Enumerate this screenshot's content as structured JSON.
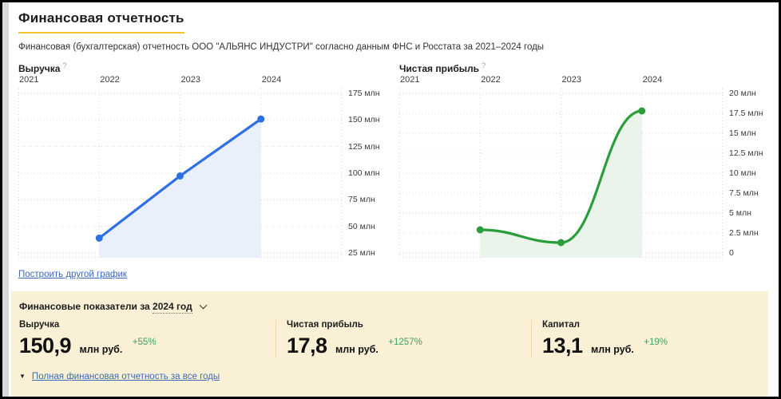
{
  "page": {
    "title": "Финансовая отчетность",
    "subtitle": "Финансовая (бухгалтерская) отчетность ООО \"АЛЬЯНС ИНДУСТРИ\" согласно данным ФНС и Росстата за 2021–2024 годы",
    "build_other_chart_link": "Построить другой график"
  },
  "colors": {
    "title_underline": "#f2c22c",
    "panel_background": "#faf0d6",
    "panel_divider": "#ecd9a4",
    "link_blue": "#3c6ab3",
    "positive_green": "#3da35c",
    "revenue_line": "#2f6fe5",
    "revenue_fill": "#e9effb",
    "profit_line": "#2b9d3a",
    "profit_fill": "#eaf4ea",
    "grid": "#d3d8e2"
  },
  "chart_data": [
    {
      "type": "area",
      "title": "Выручка",
      "help": "?",
      "x_labels": [
        "2021",
        "2022",
        "2023",
        "2024"
      ],
      "y_ticks": [
        {
          "label": "175 млн",
          "value": 175
        },
        {
          "label": "150 млн",
          "value": 150
        },
        {
          "label": "125 млн",
          "value": 125
        },
        {
          "label": "100 млн",
          "value": 100
        },
        {
          "label": "75 млн",
          "value": 75
        },
        {
          "label": "50 млн",
          "value": 50
        },
        {
          "label": "25 млн",
          "value": 25
        }
      ],
      "unit": "млн руб.",
      "points": [
        {
          "x": 2022,
          "y": 39
        },
        {
          "x": 2023,
          "y": 97.4
        },
        {
          "x": 2024,
          "y": 150.9
        }
      ],
      "smooth": false,
      "line_color": "#2f6fe5",
      "fill_color": "#e9effb"
    },
    {
      "type": "area",
      "title": "Чистая прибыль",
      "help": "?",
      "x_labels": [
        "2021",
        "2022",
        "2023",
        "2024"
      ],
      "y_ticks": [
        {
          "label": "20 млн",
          "value": 20
        },
        {
          "label": "17.5 млн",
          "value": 17.5
        },
        {
          "label": "15 млн",
          "value": 15
        },
        {
          "label": "12.5 млн",
          "value": 12.5
        },
        {
          "label": "10 млн",
          "value": 10
        },
        {
          "label": "7.5 млн",
          "value": 7.5
        },
        {
          "label": "5 млн",
          "value": 5
        },
        {
          "label": "2.5 млн",
          "value": 2.5
        },
        {
          "label": "0",
          "value": 0
        }
      ],
      "unit": "млн руб.",
      "points": [
        {
          "x": 2022,
          "y": 2.9
        },
        {
          "x": 2023,
          "y": 1.3
        },
        {
          "x": 2024,
          "y": 17.8
        }
      ],
      "smooth": true,
      "line_color": "#2b9d3a",
      "fill_color": "#eaf4ea"
    }
  ],
  "panel": {
    "header_prefix": "Финансовые показатели за",
    "header_year": "2024 год",
    "indicators": [
      {
        "label": "Выручка",
        "value": "150,9",
        "unit": "млн руб.",
        "change": "+55%"
      },
      {
        "label": "Чистая прибыль",
        "value": "17,8",
        "unit": "млн руб.",
        "change": "+1257%"
      },
      {
        "label": "Капитал",
        "value": "13,1",
        "unit": "млн руб.",
        "change": "+19%"
      }
    ],
    "full_report_link": "Полная финансовая отчетность за все годы"
  }
}
